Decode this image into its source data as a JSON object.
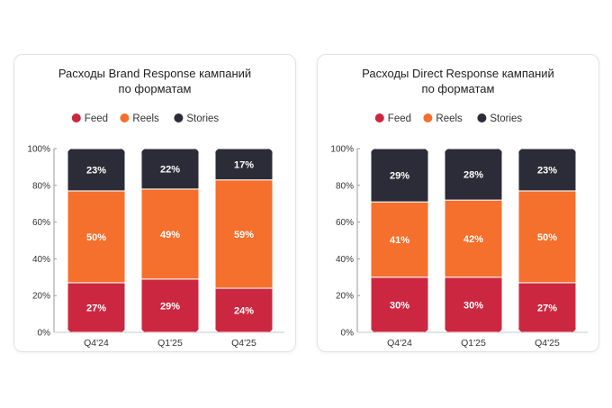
{
  "colors": {
    "Feed": "#cc2740",
    "Reels": "#f5702c",
    "Stories": "#2c2c38"
  },
  "chart_data": [
    {
      "type": "bar",
      "stacked": true,
      "title_lines": [
        "Расходы Brand Response кампаний",
        "по форматам"
      ],
      "categories": [
        "Q4'24",
        "Q1'25",
        "Q4'25"
      ],
      "series": [
        {
          "name": "Feed",
          "values": [
            27,
            29,
            24
          ]
        },
        {
          "name": "Reels",
          "values": [
            50,
            49,
            59
          ]
        },
        {
          "name": "Stories",
          "values": [
            23,
            22,
            17
          ]
        }
      ],
      "data_labels": [
        [
          "27%",
          "29%",
          "24%"
        ],
        [
          "50%",
          "49%",
          "59%"
        ],
        [
          "23%",
          "22%",
          "17%"
        ]
      ],
      "y_ticks": [
        "0%",
        "20%",
        "40%",
        "60%",
        "80%",
        "100%"
      ],
      "ylim": [
        0,
        100
      ],
      "legend": "top-center"
    },
    {
      "type": "bar",
      "stacked": true,
      "title_lines": [
        "Расходы Direct Response кампаний",
        "по форматам"
      ],
      "categories": [
        "Q4'24",
        "Q1'25",
        "Q4'25"
      ],
      "series": [
        {
          "name": "Feed",
          "values": [
            30,
            30,
            27
          ]
        },
        {
          "name": "Reels",
          "values": [
            41,
            42,
            50
          ]
        },
        {
          "name": "Stories",
          "values": [
            29,
            28,
            23
          ]
        }
      ],
      "data_labels": [
        [
          "30%",
          "30%",
          "27%"
        ],
        [
          "41%",
          "42%",
          "50%"
        ],
        [
          "29%",
          "28%",
          "23%"
        ]
      ],
      "y_ticks": [
        "0%",
        "20%",
        "40%",
        "60%",
        "80%",
        "100%"
      ],
      "ylim": [
        0,
        100
      ],
      "legend": "top-center"
    }
  ]
}
